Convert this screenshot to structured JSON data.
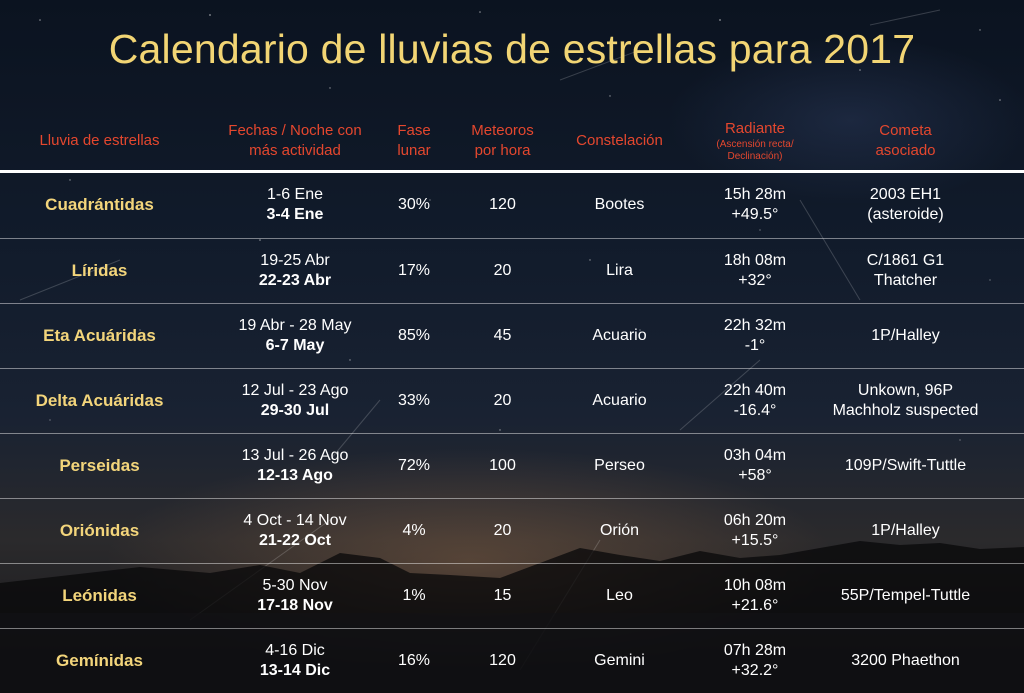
{
  "title": "Calendario de lluvias de estrellas para 2017",
  "headers": {
    "shower": "Lluvia de estrellas",
    "dates_line1": "Fechas / Noche con",
    "dates_line2": "más actividad",
    "phase_line1": "Fase",
    "phase_line2": "lunar",
    "meteors_line1": "Meteoros",
    "meteors_line2": "por hora",
    "constellation": "Constelación",
    "radiant": "Radiante",
    "radiant_sub1": "(Ascensión recta/",
    "radiant_sub2": "Declinación)",
    "comet_line1": "Cometa",
    "comet_line2": "asociado"
  },
  "rows": [
    {
      "name": "Cuadrántidas",
      "dates": "1-6 Ene",
      "peak": "3-4 Ene",
      "phase": "30%",
      "meteors": "120",
      "constellation": "Bootes",
      "ra": "15h 28m",
      "dec": "+49.5°",
      "comet1": "2003 EH1",
      "comet2": "(asteroide)"
    },
    {
      "name": "Líridas",
      "dates": "19-25 Abr",
      "peak": "22-23 Abr",
      "phase": "17%",
      "meteors": "20",
      "constellation": "Lira",
      "ra": "18h 08m",
      "dec": "+32°",
      "comet1": "C/1861 G1",
      "comet2": "Thatcher"
    },
    {
      "name": "Eta Acuáridas",
      "dates": "19 Abr - 28 May",
      "peak": "6-7 May",
      "phase": "85%",
      "meteors": "45",
      "constellation": "Acuario",
      "ra": "22h 32m",
      "dec": "-1°",
      "comet1": "1P/Halley",
      "comet2": ""
    },
    {
      "name": "Delta Acuáridas",
      "dates": "12 Jul - 23 Ago",
      "peak": "29-30 Jul",
      "phase": "33%",
      "meteors": "20",
      "constellation": "Acuario",
      "ra": "22h 40m",
      "dec": "-16.4°",
      "comet1": "Unkown,  96P",
      "comet2": "Machholz suspected"
    },
    {
      "name": "Perseidas",
      "dates": "13 Jul - 26 Ago",
      "peak": "12-13 Ago",
      "phase": "72%",
      "meteors": "100",
      "constellation": "Perseo",
      "ra": "03h 04m",
      "dec": "+58°",
      "comet1": "109P/Swift-Tuttle",
      "comet2": ""
    },
    {
      "name": "Oriónidas",
      "dates": "4 Oct - 14 Nov",
      "peak": "21-22 Oct",
      "phase": "4%",
      "meteors": "20",
      "constellation": "Orión",
      "ra": "06h 20m",
      "dec": "+15.5°",
      "comet1": "1P/Halley",
      "comet2": ""
    },
    {
      "name": "Leónidas",
      "dates": "5-30 Nov",
      "peak": "17-18 Nov",
      "phase": "1%",
      "meteors": "15",
      "constellation": "Leo",
      "ra": "10h 08m",
      "dec": "+21.6°",
      "comet1": "55P/Tempel-Tuttle",
      "comet2": ""
    },
    {
      "name": "Gemínidas",
      "dates": "4-16 Dic",
      "peak": "13-14 Dic",
      "phase": "16%",
      "meteors": "120",
      "constellation": "Gemini",
      "ra": "07h 28m",
      "dec": "+32.2°",
      "comet1": "3200 Phaethon",
      "comet2": ""
    }
  ],
  "colors": {
    "title": "#f2d574",
    "header": "#e4472e",
    "name": "#f3d57b",
    "text": "#ffffff"
  }
}
